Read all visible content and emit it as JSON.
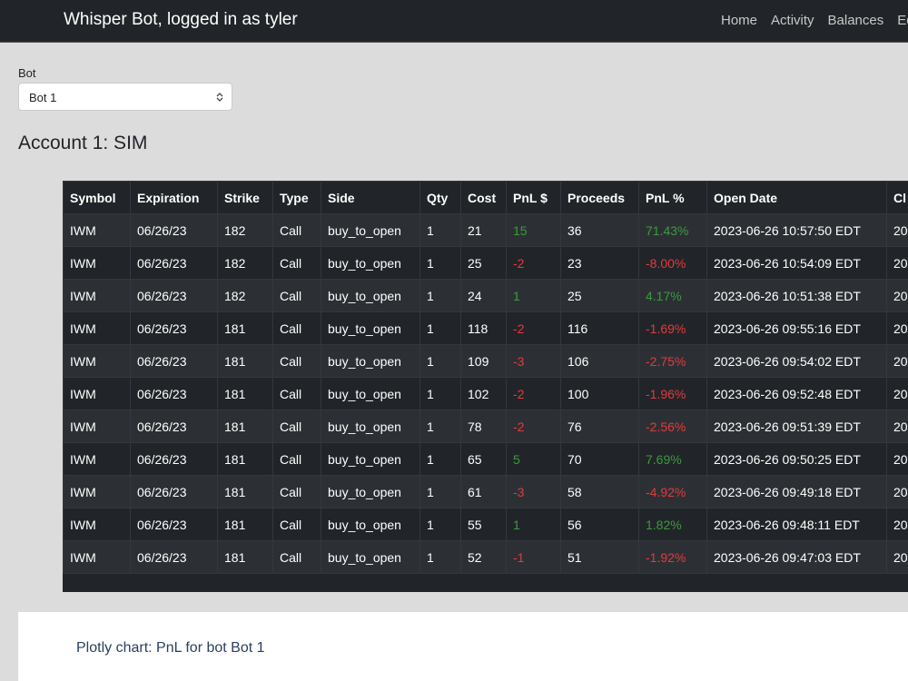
{
  "navbar": {
    "brand": "Whisper Bot, logged in as tyler",
    "links": [
      "Home",
      "Activity",
      "Balances",
      "Edit"
    ]
  },
  "form": {
    "label": "Bot",
    "selected": "Bot 1"
  },
  "heading": "Account 1: SIM",
  "table": {
    "headers": [
      "Symbol",
      "Expiration",
      "Strike",
      "Type",
      "Side",
      "Qty",
      "Cost",
      "PnL $",
      "Proceeds",
      "PnL %",
      "Open Date",
      "Cl"
    ],
    "rows": [
      [
        "IWM",
        "06/26/23",
        "182",
        "Call",
        "buy_to_open",
        "1",
        "21",
        "15",
        "36",
        "71.43%",
        "2023-06-26 10:57:50 EDT",
        "20"
      ],
      [
        "IWM",
        "06/26/23",
        "182",
        "Call",
        "buy_to_open",
        "1",
        "25",
        "-2",
        "23",
        "-8.00%",
        "2023-06-26 10:54:09 EDT",
        "20"
      ],
      [
        "IWM",
        "06/26/23",
        "182",
        "Call",
        "buy_to_open",
        "1",
        "24",
        "1",
        "25",
        "4.17%",
        "2023-06-26 10:51:38 EDT",
        "20"
      ],
      [
        "IWM",
        "06/26/23",
        "181",
        "Call",
        "buy_to_open",
        "1",
        "118",
        "-2",
        "116",
        "-1.69%",
        "2023-06-26 09:55:16 EDT",
        "20"
      ],
      [
        "IWM",
        "06/26/23",
        "181",
        "Call",
        "buy_to_open",
        "1",
        "109",
        "-3",
        "106",
        "-2.75%",
        "2023-06-26 09:54:02 EDT",
        "20"
      ],
      [
        "IWM",
        "06/26/23",
        "181",
        "Call",
        "buy_to_open",
        "1",
        "102",
        "-2",
        "100",
        "-1.96%",
        "2023-06-26 09:52:48 EDT",
        "20"
      ],
      [
        "IWM",
        "06/26/23",
        "181",
        "Call",
        "buy_to_open",
        "1",
        "78",
        "-2",
        "76",
        "-2.56%",
        "2023-06-26 09:51:39 EDT",
        "20"
      ],
      [
        "IWM",
        "06/26/23",
        "181",
        "Call",
        "buy_to_open",
        "1",
        "65",
        "5",
        "70",
        "7.69%",
        "2023-06-26 09:50:25 EDT",
        "20"
      ],
      [
        "IWM",
        "06/26/23",
        "181",
        "Call",
        "buy_to_open",
        "1",
        "61",
        "-3",
        "58",
        "-4.92%",
        "2023-06-26 09:49:18 EDT",
        "20"
      ],
      [
        "IWM",
        "06/26/23",
        "181",
        "Call",
        "buy_to_open",
        "1",
        "55",
        "1",
        "56",
        "1.82%",
        "2023-06-26 09:48:11 EDT",
        "20"
      ],
      [
        "IWM",
        "06/26/23",
        "181",
        "Call",
        "buy_to_open",
        "1",
        "52",
        "-1",
        "51",
        "-1.92%",
        "2023-06-26 09:47:03 EDT",
        "20"
      ]
    ],
    "colored_columns": [
      7,
      9
    ]
  },
  "chart_placeholder": "Plotly chart: PnL for bot Bot 1"
}
